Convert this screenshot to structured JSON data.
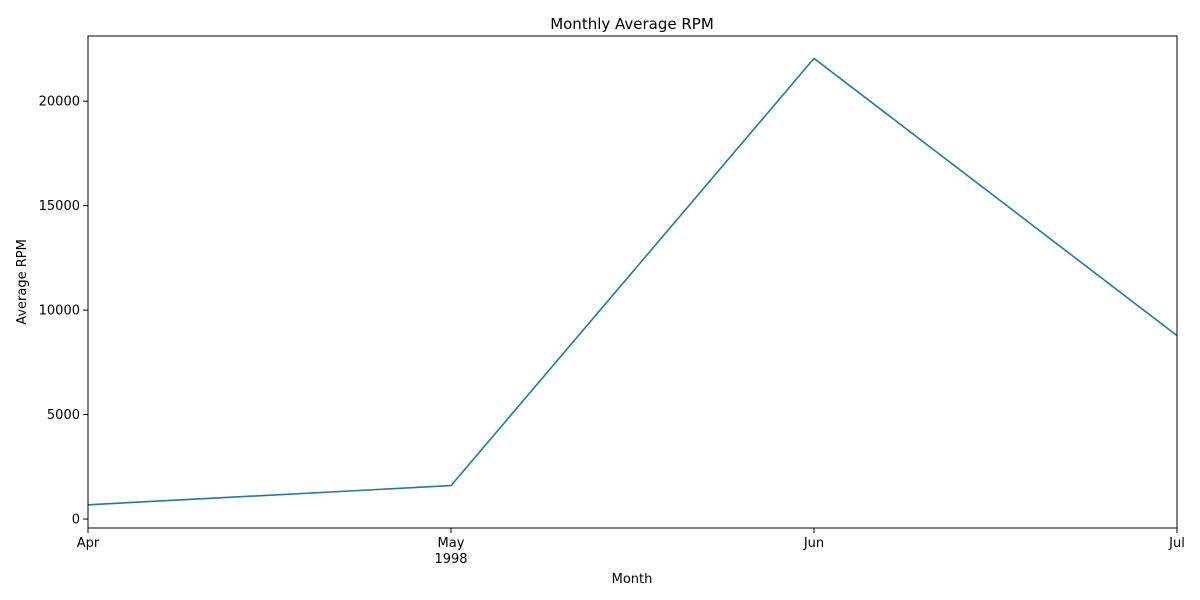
{
  "chart_data": {
    "type": "line",
    "title": "Monthly Average RPM",
    "xlabel": "Month",
    "ylabel": "Average RPM",
    "x": [
      "1998-04",
      "1998-05",
      "1998-06",
      "1998-07"
    ],
    "x_tick_labels": [
      "Apr",
      "May",
      "Jun",
      "Jul"
    ],
    "x_year_label": "1998",
    "series": [
      {
        "values": [
          680,
          1600,
          22050,
          8780
        ],
        "color": "#1f77b4"
      }
    ],
    "y_ticks": [
      0,
      5000,
      10000,
      15000,
      20000
    ],
    "ylim": [
      -430,
      23120
    ],
    "grid": false,
    "legend": "none"
  }
}
